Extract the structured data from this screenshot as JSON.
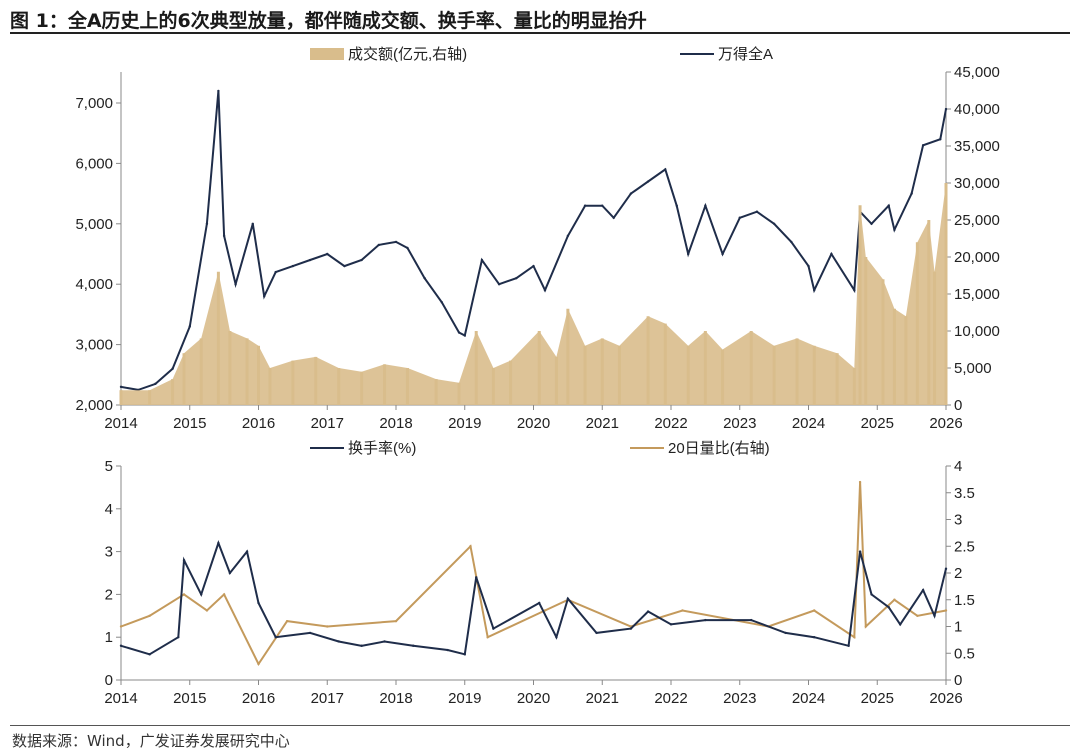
{
  "title": "图 1：全A历史上的6次典型放量，都伴随成交额、换手率、量比的明显抬升",
  "source": "数据来源：Wind，广发证券发展研究中心",
  "colors": {
    "index": "#1f2d4a",
    "turnover": "#d9bd8c",
    "ratio": "#c49a5c"
  },
  "chart_data": [
    {
      "type": "bar+line",
      "legend": [
        "成交额(亿元,右轴)",
        "万得全A"
      ],
      "legend_placement": "top",
      "x_ticks": [
        "2014",
        "2015",
        "2016",
        "2017",
        "2018",
        "2019",
        "2020",
        "2021",
        "2022",
        "2023",
        "2024",
        "2025",
        "2026"
      ],
      "y_left": {
        "range": [
          2000,
          7500
        ],
        "ticks": [
          "2,000",
          "3,000",
          "4,000",
          "5,000",
          "6,000",
          "7,000"
        ]
      },
      "y_right": {
        "range": [
          0,
          45000
        ],
        "ticks": [
          "0",
          "5,000",
          "10,000",
          "15,000",
          "20,000",
          "25,000",
          "30,000",
          "35,000",
          "40,000",
          "45,000"
        ]
      },
      "series": [
        {
          "name": "万得全A",
          "axis": "left",
          "type": "line",
          "points": [
            [
              "2014-01",
              2300
            ],
            [
              "2014-04",
              2250
            ],
            [
              "2014-07",
              2350
            ],
            [
              "2014-10",
              2600
            ],
            [
              "2015-01",
              3300
            ],
            [
              "2015-04",
              5000
            ],
            [
              "2015-06",
              7200
            ],
            [
              "2015-07",
              4800
            ],
            [
              "2015-09",
              4000
            ],
            [
              "2015-12",
              5000
            ],
            [
              "2016-02",
              3800
            ],
            [
              "2016-04",
              4200
            ],
            [
              "2016-07",
              4300
            ],
            [
              "2016-10",
              4400
            ],
            [
              "2017-01",
              4500
            ],
            [
              "2017-04",
              4300
            ],
            [
              "2017-07",
              4400
            ],
            [
              "2017-10",
              4650
            ],
            [
              "2018-01",
              4700
            ],
            [
              "2018-03",
              4600
            ],
            [
              "2018-06",
              4100
            ],
            [
              "2018-09",
              3700
            ],
            [
              "2018-12",
              3200
            ],
            [
              "2019-01",
              3150
            ],
            [
              "2019-04",
              4400
            ],
            [
              "2019-07",
              4000
            ],
            [
              "2019-10",
              4100
            ],
            [
              "2020-01",
              4300
            ],
            [
              "2020-03",
              3900
            ],
            [
              "2020-07",
              4800
            ],
            [
              "2020-10",
              5300
            ],
            [
              "2021-01",
              5300
            ],
            [
              "2021-03",
              5100
            ],
            [
              "2021-06",
              5500
            ],
            [
              "2021-09",
              5700
            ],
            [
              "2021-12",
              5900
            ],
            [
              "2022-02",
              5300
            ],
            [
              "2022-04",
              4500
            ],
            [
              "2022-07",
              5300
            ],
            [
              "2022-10",
              4500
            ],
            [
              "2023-01",
              5100
            ],
            [
              "2023-04",
              5200
            ],
            [
              "2023-07",
              5000
            ],
            [
              "2023-10",
              4700
            ],
            [
              "2024-01",
              4300
            ],
            [
              "2024-02",
              3900
            ],
            [
              "2024-05",
              4500
            ],
            [
              "2024-09",
              3900
            ],
            [
              "2024-10",
              5200
            ],
            [
              "2024-12",
              5000
            ],
            [
              "2025-03",
              5300
            ],
            [
              "2025-04",
              4900
            ],
            [
              "2025-07",
              5500
            ],
            [
              "2025-09",
              6300
            ],
            [
              "2025-12",
              6400
            ],
            [
              "2026-01",
              6900
            ]
          ]
        },
        {
          "name": "成交额(亿元,右轴)",
          "axis": "right",
          "type": "area",
          "points": [
            [
              "2014-01",
              2000
            ],
            [
              "2014-06",
              2000
            ],
            [
              "2014-10",
              3500
            ],
            [
              "2014-12",
              7000
            ],
            [
              "2015-03",
              9000
            ],
            [
              "2015-06",
              18000
            ],
            [
              "2015-08",
              10000
            ],
            [
              "2015-11",
              9000
            ],
            [
              "2016-01",
              8000
            ],
            [
              "2016-03",
              5000
            ],
            [
              "2016-07",
              6000
            ],
            [
              "2016-11",
              6500
            ],
            [
              "2017-03",
              5000
            ],
            [
              "2017-07",
              4500
            ],
            [
              "2017-11",
              5500
            ],
            [
              "2018-03",
              5000
            ],
            [
              "2018-08",
              3500
            ],
            [
              "2018-12",
              3000
            ],
            [
              "2019-03",
              10000
            ],
            [
              "2019-06",
              5000
            ],
            [
              "2019-09",
              6000
            ],
            [
              "2020-02",
              10000
            ],
            [
              "2020-05",
              6500
            ],
            [
              "2020-07",
              13000
            ],
            [
              "2020-10",
              8000
            ],
            [
              "2021-01",
              9000
            ],
            [
              "2021-04",
              8000
            ],
            [
              "2021-09",
              12000
            ],
            [
              "2021-12",
              11000
            ],
            [
              "2022-04",
              8000
            ],
            [
              "2022-07",
              10000
            ],
            [
              "2022-10",
              7500
            ],
            [
              "2023-03",
              10000
            ],
            [
              "2023-07",
              8000
            ],
            [
              "2023-11",
              9000
            ],
            [
              "2024-02",
              8000
            ],
            [
              "2024-06",
              7000
            ],
            [
              "2024-09",
              5000
            ],
            [
              "2024-10",
              27000
            ],
            [
              "2024-11",
              20000
            ],
            [
              "2025-02",
              17000
            ],
            [
              "2025-04",
              13000
            ],
            [
              "2025-06",
              12000
            ],
            [
              "2025-08",
              22000
            ],
            [
              "2025-10",
              25000
            ],
            [
              "2025-11",
              18000
            ],
            [
              "2026-01",
              30000
            ]
          ]
        }
      ]
    },
    {
      "type": "line",
      "legend": [
        "换手率(%)",
        "20日量比(右轴)"
      ],
      "legend_placement": "top",
      "x_ticks": [
        "2014",
        "2015",
        "2016",
        "2017",
        "2018",
        "2019",
        "2020",
        "2021",
        "2022",
        "2023",
        "2024",
        "2025",
        "2026"
      ],
      "y_left": {
        "range": [
          0,
          5
        ],
        "ticks": [
          "0",
          "1",
          "2",
          "3",
          "4",
          "5"
        ]
      },
      "y_right": {
        "range": [
          0,
          4
        ],
        "ticks": [
          "0",
          "0.5",
          "1",
          "1.5",
          "2",
          "2.5",
          "3",
          "3.5",
          "4"
        ]
      },
      "series": [
        {
          "name": "20日量比(右轴)",
          "axis": "right",
          "points": [
            [
              "2014-01",
              1.0
            ],
            [
              "2014-06",
              1.2
            ],
            [
              "2014-12",
              1.6
            ],
            [
              "2015-04",
              1.3
            ],
            [
              "2015-07",
              1.6
            ],
            [
              "2016-01",
              0.3
            ],
            [
              "2016-06",
              1.1
            ],
            [
              "2017-01",
              1.0
            ],
            [
              "2018-01",
              1.1
            ],
            [
              "2019-02",
              2.5
            ],
            [
              "2019-05",
              0.8
            ],
            [
              "2020-03",
              1.3
            ],
            [
              "2020-07",
              1.5
            ],
            [
              "2021-06",
              1.0
            ],
            [
              "2022-03",
              1.3
            ],
            [
              "2023-06",
              1.0
            ],
            [
              "2024-02",
              1.3
            ],
            [
              "2024-09",
              0.8
            ],
            [
              "2024-10",
              3.7
            ],
            [
              "2024-11",
              1.0
            ],
            [
              "2025-04",
              1.5
            ],
            [
              "2025-08",
              1.2
            ],
            [
              "2026-01",
              1.3
            ]
          ]
        },
        {
          "name": "换手率(%)",
          "axis": "left",
          "points": [
            [
              "2014-01",
              0.8
            ],
            [
              "2014-06",
              0.6
            ],
            [
              "2014-11",
              1.0
            ],
            [
              "2014-12",
              2.8
            ],
            [
              "2015-03",
              2.0
            ],
            [
              "2015-06",
              3.2
            ],
            [
              "2015-08",
              2.5
            ],
            [
              "2015-11",
              3.0
            ],
            [
              "2016-01",
              1.8
            ],
            [
              "2016-04",
              1.0
            ],
            [
              "2016-10",
              1.1
            ],
            [
              "2017-03",
              0.9
            ],
            [
              "2017-07",
              0.8
            ],
            [
              "2017-11",
              0.9
            ],
            [
              "2018-04",
              0.8
            ],
            [
              "2018-10",
              0.7
            ],
            [
              "2019-01",
              0.6
            ],
            [
              "2019-03",
              2.4
            ],
            [
              "2019-06",
              1.2
            ],
            [
              "2020-02",
              1.8
            ],
            [
              "2020-05",
              1.0
            ],
            [
              "2020-07",
              1.9
            ],
            [
              "2020-12",
              1.1
            ],
            [
              "2021-06",
              1.2
            ],
            [
              "2021-09",
              1.6
            ],
            [
              "2022-01",
              1.3
            ],
            [
              "2022-07",
              1.4
            ],
            [
              "2023-03",
              1.4
            ],
            [
              "2023-09",
              1.1
            ],
            [
              "2024-02",
              1.0
            ],
            [
              "2024-08",
              0.8
            ],
            [
              "2024-10",
              3.0
            ],
            [
              "2024-12",
              2.0
            ],
            [
              "2025-03",
              1.7
            ],
            [
              "2025-05",
              1.3
            ],
            [
              "2025-09",
              2.1
            ],
            [
              "2025-11",
              1.5
            ],
            [
              "2026-01",
              2.6
            ]
          ]
        }
      ]
    }
  ]
}
